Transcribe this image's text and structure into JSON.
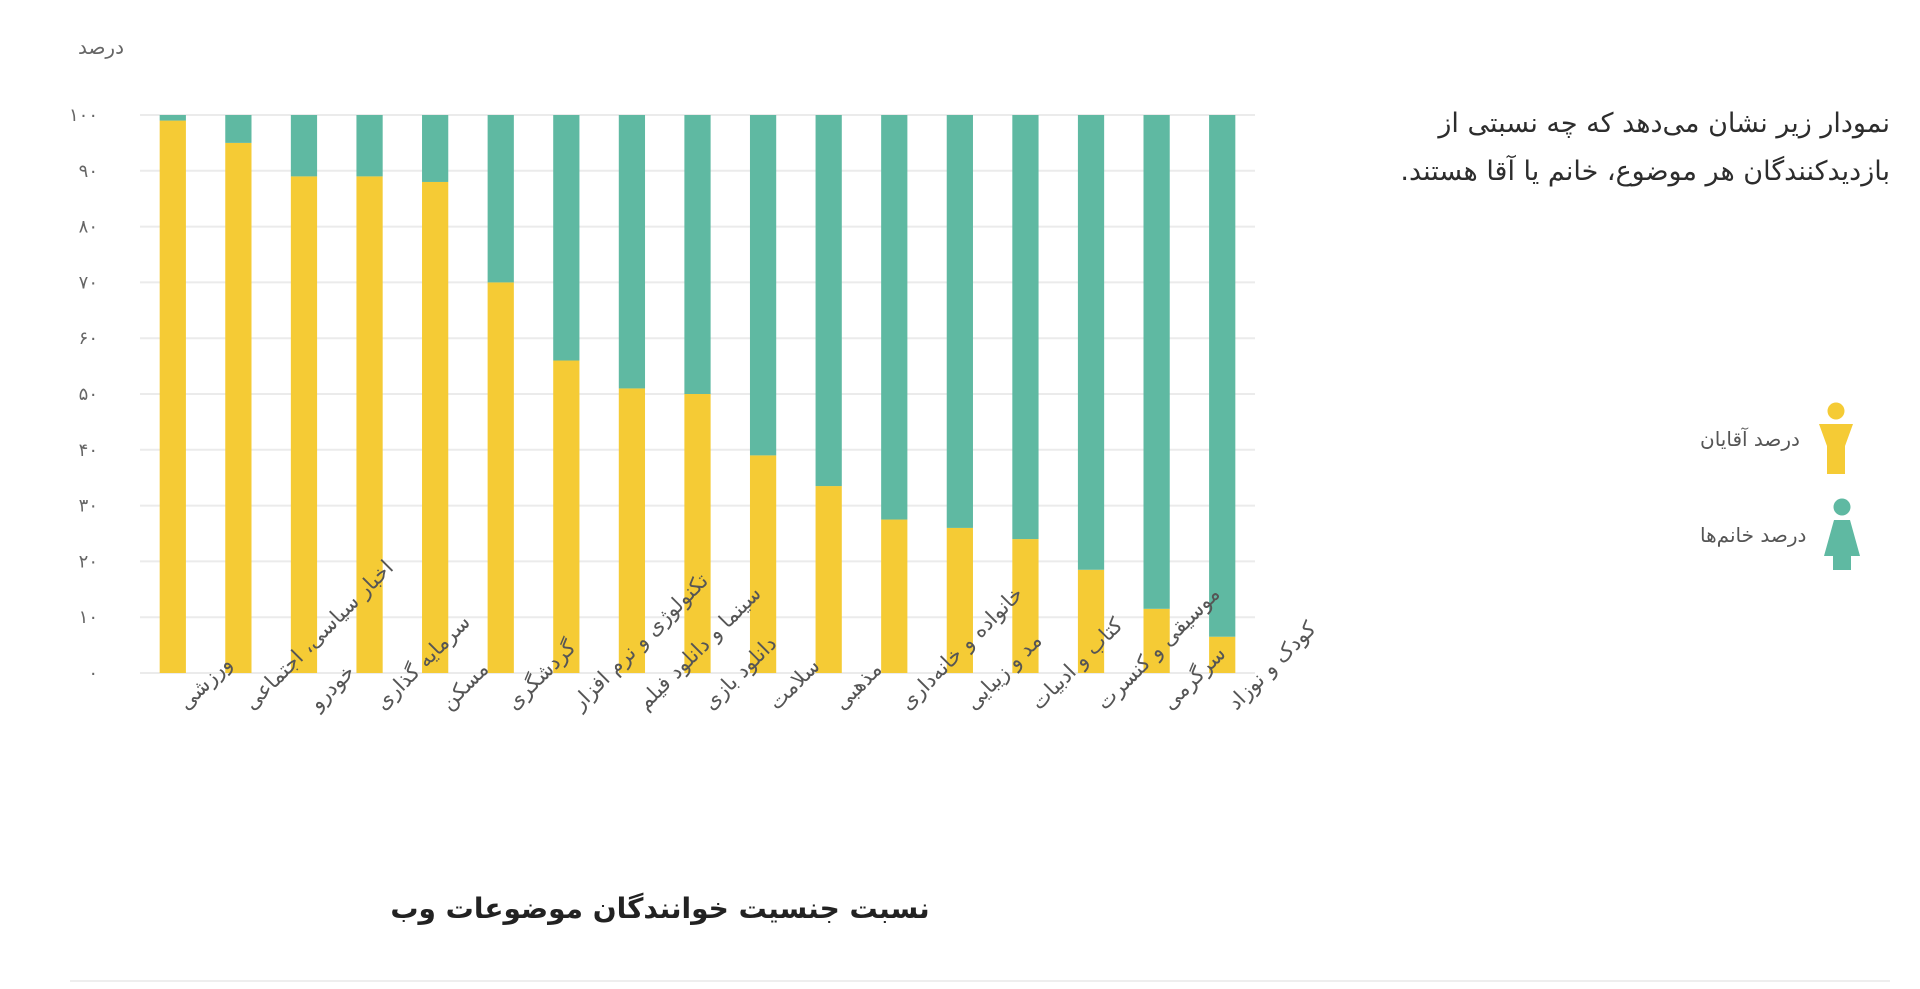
{
  "description": "نمودار زیر نشان می‌دهد که چه نسبتی از بازدیدکنندگان هر موضوع، خانم یا آقا هستند.",
  "legend": {
    "men_label": "درصد آقایان",
    "men_icon": "male-figure-icon",
    "women_label": "درصد خانم‌ها",
    "women_icon": "female-figure-icon"
  },
  "colors": {
    "men": "#F5CB35",
    "women": "#5FB9A2",
    "grid": "#EBEBEB"
  },
  "chart_data": {
    "type": "bar",
    "stacked": true,
    "title": "نسبت جنسیت خوانندگان موضوعات وب",
    "ylabel": "درصد",
    "xlabel": "",
    "ylim": [
      0,
      100
    ],
    "yticks": [
      0,
      10,
      20,
      30,
      40,
      50,
      60,
      70,
      80,
      90,
      100
    ],
    "ytick_labels": [
      "۰",
      "۱۰",
      "۲۰",
      "۳۰",
      "۴۰",
      "۵۰",
      "۶۰",
      "۷۰",
      "۸۰",
      "۹۰",
      "۱۰۰"
    ],
    "grid": true,
    "legend_position": "right",
    "categories": [
      "ورزشی",
      "اخبار سیاسی، اجتماعی",
      "خودرو",
      "سرمایه گذاری",
      "مسکن",
      "گردشگری",
      "تکنولوژی و نرم افزار",
      "سینما و دانلود فیلم",
      "دانلود بازی",
      "سلامت",
      "مذهبی",
      "خانواده و خانه‌داری",
      "مد و زیبایی",
      "کتاب و ادبیات",
      "موسیقی و کنسرت",
      "سرگرمی",
      "کودک و نوزاد"
    ],
    "series": [
      {
        "name": "درصد آقایان",
        "values": [
          99,
          95,
          89,
          89,
          88,
          70,
          56,
          51,
          50,
          39,
          33.5,
          27.5,
          26,
          24,
          18.5,
          11.5,
          6.5
        ]
      },
      {
        "name": "درصد خانم‌ها",
        "values": [
          1,
          5,
          11,
          11,
          12,
          30,
          44,
          49,
          50,
          61,
          66.5,
          72.5,
          74,
          76,
          81.5,
          88.5,
          93.5
        ]
      }
    ]
  }
}
